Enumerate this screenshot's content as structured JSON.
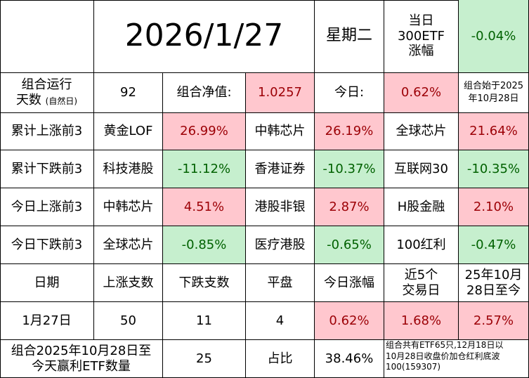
{
  "header": {
    "date": "2026/1/27",
    "weekday": "星期二",
    "index_label_line1": "当日",
    "index_label_line2": "300ETF",
    "index_label_line3": "涨幅",
    "index_change": "-0.04%"
  },
  "summary": {
    "run_days_label_line1": "组合运行",
    "run_days_label_line2": "天数",
    "run_days_label_note": "(自然日)",
    "run_days": "92",
    "nav_label": "组合净值:",
    "nav": "1.0257",
    "today_label": "今日:",
    "today_change": "0.62%",
    "start_note_line1": "组合始于2025",
    "start_note_line2": "年10月28日"
  },
  "rank_rows": [
    {
      "label": "累计上涨前3",
      "items": [
        {
          "name": "黄金LOF",
          "value": "26.99%"
        },
        {
          "name": "中韩芯片",
          "value": "26.19%"
        },
        {
          "name": "全球芯片",
          "value": "21.64%"
        }
      ]
    },
    {
      "label": "累计下跌前3",
      "items": [
        {
          "name": "科技港股",
          "value": "-11.12%"
        },
        {
          "name": "香港证券",
          "value": "-10.37%"
        },
        {
          "name": "互联网30",
          "value": "-10.35%"
        }
      ]
    },
    {
      "label": "今日上涨前3",
      "items": [
        {
          "name": "中韩芯片",
          "value": "4.51%"
        },
        {
          "name": "港股非银",
          "value": "2.87%"
        },
        {
          "name": "H股金融",
          "value": "2.10%"
        }
      ]
    },
    {
      "label": "今日下跌前3",
      "items": [
        {
          "name": "全球芯片",
          "value": "-0.85%"
        },
        {
          "name": "医疗港股",
          "value": "-0.65%"
        },
        {
          "name": "100红利",
          "value": "-0.47%"
        }
      ]
    }
  ],
  "stats_header": {
    "date": "日期",
    "up_count": "上涨支数",
    "down_count": "下跌支数",
    "flat": "平盘",
    "today_change": "今日涨幅",
    "last5_line1": "近5个",
    "last5_line2": "交易日",
    "since_line1": "25年10月",
    "since_line2": "28日至今"
  },
  "stats_row": {
    "date": "1月27日",
    "up_count": "50",
    "down_count": "11",
    "flat": "4",
    "today_change": "0.62%",
    "last5": "1.68%",
    "since": "2.57%"
  },
  "footer": {
    "label_line1": "组合2025年10月28日至",
    "label_line2": "今天赢利ETF数量",
    "count": "25",
    "ratio_label": "占比",
    "ratio": "38.46%",
    "note_line1": "组合共有ETF65只,12月18日以",
    "note_line2": "10月28日收盘价加仓红利底波",
    "note_line3": "100(159307)"
  },
  "colors": {
    "up_bg": "#ffc7ce",
    "up_text": "#9c0006",
    "down_bg": "#c6efce",
    "down_text": "#006100"
  }
}
